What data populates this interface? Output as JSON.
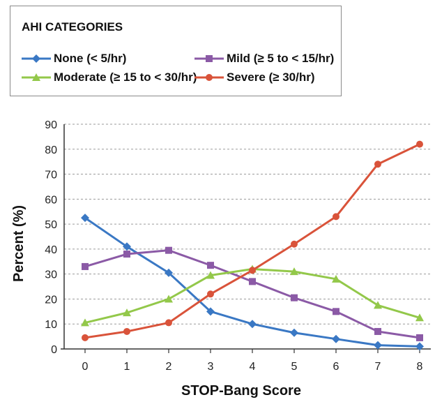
{
  "legend": {
    "title": "AHI CATEGORIES"
  },
  "chart_data": {
    "type": "line",
    "title": "",
    "xlabel": "STOP-Bang Score",
    "ylabel": "Percent (%)",
    "x": [
      0,
      1,
      2,
      3,
      4,
      5,
      6,
      7,
      8
    ],
    "xlim": [
      0,
      8
    ],
    "ylim": [
      0,
      90
    ],
    "yticks": [
      0,
      10,
      20,
      30,
      40,
      50,
      60,
      70,
      80,
      90
    ],
    "grid": "horizontal dashed",
    "legend_position": "top, boxed",
    "series": [
      {
        "name": "None (< 5/hr)",
        "color": "#3a78c4",
        "marker": "diamond",
        "values": [
          52.5,
          41,
          30.5,
          15,
          10,
          6.5,
          4,
          1.5,
          1
        ]
      },
      {
        "name": "Mild (≥ 5 to < 15/hr)",
        "color": "#8b5aa6",
        "marker": "square",
        "values": [
          33,
          38,
          39.5,
          33.5,
          27,
          20.5,
          15,
          7,
          4.5
        ]
      },
      {
        "name": "Moderate (≥ 15 to < 30/hr)",
        "color": "#93c84a",
        "marker": "triangle",
        "values": [
          10.5,
          14.5,
          20,
          29.5,
          32,
          31,
          28,
          17.5,
          12.5
        ]
      },
      {
        "name": "Severe (≥ 30/hr)",
        "color": "#d9533a",
        "marker": "circle",
        "values": [
          4.5,
          7,
          10.5,
          22,
          31.5,
          42,
          53,
          74,
          82
        ]
      }
    ]
  }
}
